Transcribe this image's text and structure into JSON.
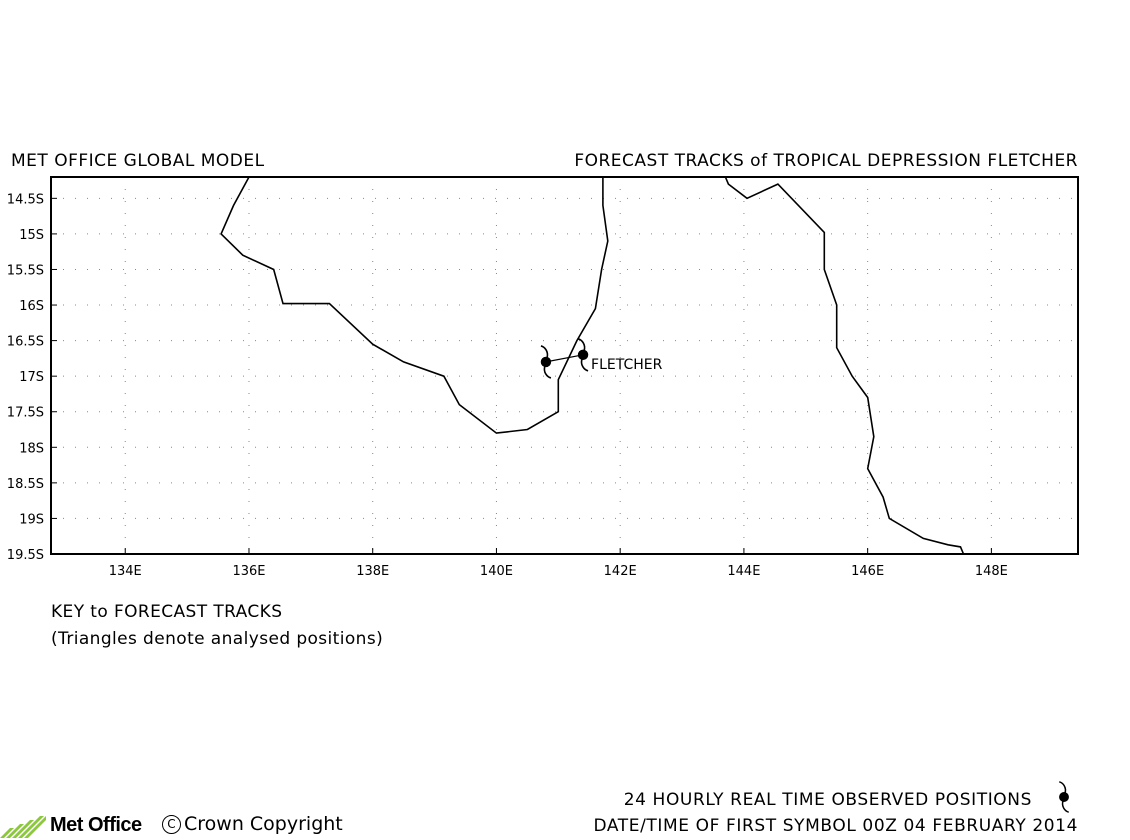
{
  "header": {
    "left_title": "MET OFFICE GLOBAL MODEL",
    "right_title": "FORECAST TRACKS of TROPICAL DEPRESSION FLETCHER"
  },
  "map": {
    "lon_range": [
      132.8,
      149.4
    ],
    "lat_range": [
      -19.5,
      -14.2
    ],
    "lat_ticks": [
      {
        "value": -14.5,
        "label": "14.5S"
      },
      {
        "value": -15.0,
        "label": "15S"
      },
      {
        "value": -15.5,
        "label": "15.5S"
      },
      {
        "value": -16.0,
        "label": "16S"
      },
      {
        "value": -16.5,
        "label": "16.5S"
      },
      {
        "value": -17.0,
        "label": "17S"
      },
      {
        "value": -17.5,
        "label": "17.5S"
      },
      {
        "value": -18.0,
        "label": "18S"
      },
      {
        "value": -18.5,
        "label": "18.5S"
      },
      {
        "value": -19.0,
        "label": "19S"
      },
      {
        "value": -19.5,
        "label": "19.5S"
      }
    ],
    "lon_ticks": [
      {
        "value": 134,
        "label": "134E"
      },
      {
        "value": 136,
        "label": "136E"
      },
      {
        "value": 138,
        "label": "138E"
      },
      {
        "value": 140,
        "label": "140E"
      },
      {
        "value": 142,
        "label": "142E"
      },
      {
        "value": 144,
        "label": "144E"
      },
      {
        "value": 146,
        "label": "146E"
      },
      {
        "value": 148,
        "label": "148E"
      }
    ],
    "grid": "dotted",
    "coastlines": [
      [
        [
          136.0,
          -14.2
        ],
        [
          135.75,
          -14.6
        ],
        [
          135.55,
          -15.0
        ],
        [
          135.9,
          -15.3
        ],
        [
          136.4,
          -15.5
        ],
        [
          136.55,
          -15.98
        ],
        [
          137.3,
          -15.98
        ],
        [
          138.0,
          -16.55
        ],
        [
          138.5,
          -16.8
        ],
        [
          139.15,
          -17.0
        ],
        [
          139.4,
          -17.4
        ],
        [
          140.0,
          -17.8
        ],
        [
          140.5,
          -17.75
        ],
        [
          141.0,
          -17.5
        ],
        [
          141.0,
          -17.05
        ],
        [
          141.3,
          -16.5
        ],
        [
          141.6,
          -16.05
        ],
        [
          141.7,
          -15.5
        ],
        [
          141.8,
          -15.1
        ],
        [
          141.72,
          -14.6
        ],
        [
          141.72,
          -14.2
        ]
      ],
      [
        [
          143.7,
          -14.2
        ],
        [
          143.75,
          -14.3
        ],
        [
          144.05,
          -14.5
        ],
        [
          144.55,
          -14.3
        ],
        [
          145.3,
          -14.98
        ],
        [
          145.3,
          -15.5
        ],
        [
          145.5,
          -16.0
        ],
        [
          145.5,
          -16.6
        ],
        [
          145.75,
          -17.0
        ],
        [
          146.0,
          -17.3
        ],
        [
          146.1,
          -17.85
        ],
        [
          146.0,
          -18.3
        ],
        [
          146.25,
          -18.7
        ],
        [
          146.35,
          -19.0
        ],
        [
          146.9,
          -19.28
        ],
        [
          147.3,
          -19.37
        ],
        [
          147.5,
          -19.4
        ],
        [
          147.55,
          -19.5
        ]
      ]
    ],
    "storm": {
      "name": "FLETCHER",
      "observed_positions": [
        {
          "lon": 141.4,
          "lat": -16.7
        },
        {
          "lon": 140.8,
          "lat": -16.8
        }
      ]
    }
  },
  "key": {
    "title": "KEY to FORECAST TRACKS",
    "note": "(Triangles denote analysed positions)"
  },
  "footer": {
    "observed_label": "24 HOURLY REAL TIME OBSERVED POSITIONS",
    "first_symbol": "DATE/TIME OF FIRST SYMBOL 00Z 04 FEBRUARY 2014",
    "logo": "Met Office",
    "copyright_symbol": "C",
    "copyright": "Crown Copyright"
  },
  "colors": {
    "background": "#ffffff",
    "lines": "#000000",
    "grid": "#999999",
    "logo_green": "#8dc63f"
  }
}
